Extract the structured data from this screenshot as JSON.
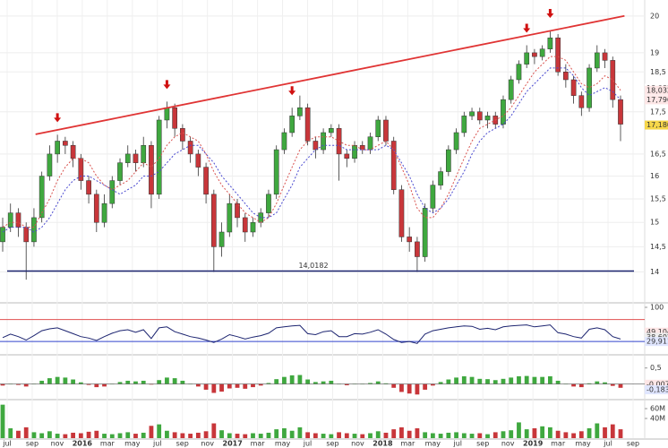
{
  "time_axis": {
    "labels": [
      "jul",
      "sep",
      "nov",
      "2016",
      "mar",
      "may",
      "jul",
      "sep",
      "nov",
      "2017",
      "mar",
      "may",
      "jul",
      "sep",
      "nov",
      "2018",
      "mar",
      "may",
      "jul",
      "sep",
      "nov",
      "2019",
      "mar",
      "may",
      "jul",
      "sep"
    ]
  },
  "chart_data": [
    {
      "type": "candlestick",
      "log_scale": true,
      "grid": true,
      "ylim": [
        13.46,
        20.45
      ],
      "yticks": [
        14,
        {
          "value": 14.5,
          "label": "14,5"
        },
        15,
        {
          "value": 15.5,
          "label": "15,5"
        },
        16,
        {
          "value": 16.5,
          "label": "16,5"
        },
        {
          "value": 17.5,
          "label": "17,5"
        },
        {
          "value": 18.5,
          "label": "18,5"
        },
        19,
        20
      ],
      "up_color": "#3fa83f",
      "down_color": "#c8363a",
      "candles": [
        [
          14.6,
          15.1,
          14.4,
          14.9
        ],
        [
          14.9,
          15.4,
          14.8,
          15.2
        ],
        [
          15.2,
          15.3,
          14.7,
          14.9
        ],
        [
          14.9,
          15.0,
          13.85,
          14.6
        ],
        [
          14.6,
          15.3,
          14.5,
          15.1
        ],
        [
          15.1,
          16.1,
          15.0,
          16.0
        ],
        [
          16.0,
          16.7,
          15.9,
          16.5
        ],
        [
          16.5,
          16.95,
          16.3,
          16.8
        ],
        [
          16.8,
          16.9,
          16.5,
          16.7
        ],
        [
          16.7,
          16.8,
          16.2,
          16.4
        ],
        [
          16.4,
          16.5,
          15.7,
          15.9
        ],
        [
          15.9,
          16.0,
          15.4,
          15.6
        ],
        [
          15.6,
          15.7,
          14.8,
          15.0
        ],
        [
          15.0,
          15.6,
          14.9,
          15.4
        ],
        [
          15.4,
          16.0,
          15.3,
          15.9
        ],
        [
          15.9,
          16.4,
          15.8,
          16.3
        ],
        [
          16.3,
          16.7,
          16.2,
          16.5
        ],
        [
          16.5,
          16.6,
          16.1,
          16.3
        ],
        [
          16.3,
          16.9,
          16.2,
          16.7
        ],
        [
          16.7,
          16.8,
          15.3,
          15.6
        ],
        [
          15.6,
          17.4,
          15.5,
          17.3
        ],
        [
          17.3,
          17.75,
          17.1,
          17.6
        ],
        [
          17.6,
          17.7,
          16.9,
          17.1
        ],
        [
          17.1,
          17.2,
          16.6,
          16.8
        ],
        [
          16.8,
          16.9,
          16.3,
          16.5
        ],
        [
          16.5,
          16.6,
          16.0,
          16.2
        ],
        [
          16.2,
          16.3,
          15.4,
          15.6
        ],
        [
          15.6,
          15.7,
          14.0,
          14.5
        ],
        [
          14.5,
          15.0,
          14.3,
          14.8
        ],
        [
          14.8,
          15.6,
          14.7,
          15.4
        ],
        [
          15.4,
          15.5,
          14.9,
          15.1
        ],
        [
          15.1,
          15.2,
          14.6,
          14.8
        ],
        [
          14.8,
          15.1,
          14.7,
          15.0
        ],
        [
          15.0,
          15.3,
          14.9,
          15.2
        ],
        [
          15.2,
          15.7,
          15.1,
          15.6
        ],
        [
          15.6,
          16.7,
          15.5,
          16.6
        ],
        [
          16.6,
          17.1,
          16.5,
          17.0
        ],
        [
          17.0,
          17.6,
          16.9,
          17.4
        ],
        [
          17.4,
          17.9,
          17.3,
          17.6
        ],
        [
          17.6,
          17.7,
          16.7,
          16.8
        ],
        [
          16.8,
          16.9,
          16.4,
          16.6
        ],
        [
          16.6,
          17.1,
          16.5,
          17.0
        ],
        [
          17.0,
          17.2,
          16.9,
          17.1
        ],
        [
          17.1,
          17.2,
          15.9,
          16.5
        ],
        [
          16.5,
          16.6,
          16.2,
          16.4
        ],
        [
          16.4,
          16.8,
          16.3,
          16.7
        ],
        [
          16.7,
          16.8,
          16.5,
          16.6
        ],
        [
          16.6,
          17.0,
          16.5,
          16.9
        ],
        [
          16.9,
          17.4,
          16.8,
          17.3
        ],
        [
          17.3,
          17.4,
          16.7,
          16.8
        ],
        [
          16.8,
          16.9,
          15.6,
          15.7
        ],
        [
          15.7,
          15.8,
          14.6,
          14.7
        ],
        [
          14.7,
          14.9,
          14.4,
          14.6
        ],
        [
          14.6,
          14.7,
          14.0,
          14.3
        ],
        [
          14.3,
          15.4,
          14.2,
          15.3
        ],
        [
          15.3,
          15.9,
          15.2,
          15.8
        ],
        [
          15.8,
          16.2,
          15.7,
          16.1
        ],
        [
          16.1,
          16.7,
          16.0,
          16.6
        ],
        [
          16.6,
          17.1,
          16.5,
          17.0
        ],
        [
          17.0,
          17.5,
          16.9,
          17.4
        ],
        [
          17.4,
          17.6,
          17.3,
          17.5
        ],
        [
          17.5,
          17.6,
          17.2,
          17.3
        ],
        [
          17.3,
          17.5,
          17.1,
          17.4
        ],
        [
          17.4,
          17.5,
          17.1,
          17.2
        ],
        [
          17.2,
          17.9,
          17.1,
          17.8
        ],
        [
          17.8,
          18.4,
          17.7,
          18.3
        ],
        [
          18.3,
          18.8,
          18.2,
          18.7
        ],
        [
          18.7,
          19.2,
          18.6,
          19.0
        ],
        [
          19.0,
          19.1,
          18.7,
          18.9
        ],
        [
          18.9,
          19.2,
          18.8,
          19.1
        ],
        [
          19.1,
          19.6,
          19.0,
          19.4
        ],
        [
          19.4,
          19.5,
          18.4,
          18.5
        ],
        [
          18.5,
          18.7,
          18.1,
          18.3
        ],
        [
          18.3,
          18.4,
          17.7,
          17.9
        ],
        [
          17.9,
          18.0,
          17.4,
          17.6
        ],
        [
          17.6,
          18.7,
          17.5,
          18.6
        ],
        [
          18.6,
          19.2,
          18.5,
          19.0
        ],
        [
          19.0,
          19.1,
          18.6,
          18.8
        ],
        [
          18.8,
          18.9,
          17.6,
          17.8
        ],
        [
          17.8,
          17.9,
          16.8,
          17.2
        ]
      ],
      "overlays": [
        {
          "color": "#d9534f",
          "values": [
            14.9,
            15.0,
            15.0,
            14.9,
            14.9,
            15.2,
            15.5,
            15.9,
            16.2,
            16.4,
            16.4,
            16.3,
            16.0,
            15.8,
            15.7,
            15.8,
            15.9,
            16.1,
            16.3,
            16.2,
            16.4,
            16.7,
            16.9,
            17.0,
            16.9,
            16.8,
            16.5,
            16.1,
            15.8,
            15.6,
            15.4,
            15.2,
            15.1,
            15.0,
            15.1,
            15.4,
            15.8,
            16.2,
            16.6,
            16.8,
            16.9,
            16.9,
            16.9,
            16.8,
            16.7,
            16.7,
            16.6,
            16.6,
            16.7,
            16.8,
            16.6,
            16.2,
            15.8,
            15.3,
            15.1,
            15.1,
            15.3,
            15.6,
            16.0,
            16.4,
            16.8,
            17.1,
            17.2,
            17.3,
            17.4,
            17.6,
            17.9,
            18.2,
            18.5,
            18.7,
            18.9,
            18.9,
            18.8,
            18.5,
            18.2,
            18.1,
            18.2,
            18.4,
            18.3,
            18.032
          ]
        },
        {
          "color": "#4a4ad0",
          "values": [
            14.8,
            14.9,
            14.9,
            14.9,
            14.8,
            14.9,
            15.1,
            15.4,
            15.7,
            15.9,
            16.0,
            16.0,
            15.9,
            15.8,
            15.7,
            15.6,
            15.7,
            15.8,
            16.0,
            16.0,
            16.1,
            16.3,
            16.5,
            16.6,
            16.7,
            16.7,
            16.5,
            16.3,
            16.0,
            15.8,
            15.6,
            15.4,
            15.2,
            15.1,
            15.1,
            15.2,
            15.5,
            15.8,
            16.2,
            16.4,
            16.6,
            16.7,
            16.7,
            16.7,
            16.6,
            16.6,
            16.6,
            16.6,
            16.6,
            16.7,
            16.6,
            16.3,
            16.0,
            15.6,
            15.3,
            15.2,
            15.3,
            15.5,
            15.8,
            16.1,
            16.5,
            16.8,
            17.0,
            17.1,
            17.2,
            17.4,
            17.7,
            18.0,
            18.2,
            18.4,
            18.6,
            18.6,
            18.6,
            18.4,
            18.1,
            17.9,
            18.0,
            18.1,
            18.0,
            17.796
          ]
        }
      ],
      "trendline": {
        "x": [
          4.2,
          79.5
        ],
        "values": [
          16.96,
          20.0
        ],
        "color": "#e03434"
      },
      "support": {
        "value": 14.0182,
        "label": "14,0182",
        "color": "#1c2470"
      },
      "markers": {
        "x": [
          7,
          21,
          37,
          67,
          70
        ],
        "color": "#d01010"
      },
      "tags": [
        {
          "value": 18.083,
          "label": "18,083",
          "color": "#d03030",
          "fill": "#ffffff"
        },
        {
          "value": 18.032,
          "label": "18,032",
          "color": "#d03030",
          "fill": "#fde6e6"
        },
        {
          "value": 17.796,
          "label": "17,796",
          "color": "#d03030",
          "fill": "#fde6e6"
        },
        {
          "value": 17.18,
          "label": "17,180",
          "color": "#000000",
          "fill": "#f6d64a"
        }
      ]
    },
    {
      "type": "line",
      "ylim": [
        10,
        100
      ],
      "yticks": [
        100
      ],
      "color": "#1c2470",
      "levels": [
        {
          "value": 75,
          "color": "#e05050"
        },
        {
          "value": 30,
          "color": "#3344cc"
        }
      ],
      "values": [
        38,
        45,
        40,
        33,
        42,
        52,
        56,
        58,
        52,
        46,
        40,
        37,
        32,
        40,
        47,
        52,
        54,
        49,
        54,
        36,
        58,
        60,
        50,
        45,
        40,
        37,
        33,
        28,
        35,
        44,
        40,
        35,
        39,
        42,
        47,
        58,
        60,
        62,
        63,
        46,
        44,
        50,
        52,
        40,
        40,
        46,
        45,
        49,
        54,
        45,
        34,
        28,
        30,
        26,
        45,
        52,
        55,
        58,
        60,
        62,
        61,
        55,
        57,
        54,
        60,
        62,
        63,
        64,
        60,
        62,
        64,
        48,
        45,
        40,
        37,
        55,
        58,
        54,
        40,
        35
      ],
      "tags": [
        {
          "value": 49.104,
          "label": "49,104",
          "color": "#d03030",
          "fill": "#fde6e6"
        },
        {
          "value": 38.602,
          "label": "38,602",
          "color": "#333333",
          "fill": "#eeeeee"
        },
        {
          "value": 29.911,
          "label": "29,911",
          "color": "#2233aa",
          "fill": "#e0e6ff"
        }
      ]
    },
    {
      "type": "bar",
      "ylim": [
        -0.35,
        0.8
      ],
      "yticks": [
        {
          "value": 0.5,
          "label": "0,5"
        }
      ],
      "positive_color": "#3fa83f",
      "negative_color": "#c8363a",
      "values": [
        -0.05,
        0.0,
        -0.03,
        -0.08,
        0.0,
        0.1,
        0.18,
        0.22,
        0.2,
        0.14,
        0.05,
        -0.03,
        -0.1,
        -0.08,
        0.0,
        0.06,
        0.1,
        0.08,
        0.1,
        -0.02,
        0.12,
        0.2,
        0.18,
        0.1,
        0.0,
        -0.08,
        -0.18,
        -0.28,
        -0.24,
        -0.14,
        -0.12,
        -0.15,
        -0.1,
        -0.05,
        0.03,
        0.15,
        0.22,
        0.27,
        0.28,
        0.14,
        0.06,
        0.08,
        0.1,
        0.0,
        -0.04,
        0.0,
        0.0,
        0.03,
        0.08,
        0.02,
        -0.12,
        -0.25,
        -0.3,
        -0.33,
        -0.18,
        -0.05,
        0.06,
        0.14,
        0.2,
        0.24,
        0.22,
        0.16,
        0.15,
        0.12,
        0.16,
        0.2,
        0.24,
        0.25,
        0.22,
        0.22,
        0.24,
        0.1,
        0.0,
        -0.08,
        -0.1,
        0.02,
        0.08,
        0.05,
        -0.06,
        -0.12
      ],
      "tags": [
        {
          "value": -0.007,
          "label": "-0,007",
          "color": "#d03030",
          "fill": "#fde6e6"
        },
        {
          "value": -0.183,
          "label": "-0,183",
          "color": "#2233aa",
          "fill": "#e0e6ff"
        }
      ]
    },
    {
      "type": "bar",
      "ylim": [
        0,
        71000000
      ],
      "yticks": [
        {
          "value": 40000000,
          "label": "40M"
        },
        {
          "value": 60000000,
          "label": "60M"
        }
      ],
      "up_color": "#3fa83f",
      "down_color": "#c8363a",
      "values": [
        68000000,
        20000000,
        15000000,
        22000000,
        12000000,
        10000000,
        14000000,
        9000000,
        8000000,
        11000000,
        10000000,
        13000000,
        15000000,
        9000000,
        8000000,
        10000000,
        12000000,
        9000000,
        11000000,
        25000000,
        28000000,
        15000000,
        12000000,
        10000000,
        9000000,
        11000000,
        14000000,
        30000000,
        16000000,
        10000000,
        9000000,
        8000000,
        10000000,
        9000000,
        11000000,
        18000000,
        20000000,
        15000000,
        22000000,
        12000000,
        10000000,
        9000000,
        8000000,
        12000000,
        10000000,
        9000000,
        8000000,
        10000000,
        14000000,
        11000000,
        18000000,
        22000000,
        15000000,
        20000000,
        12000000,
        10000000,
        9000000,
        11000000,
        12000000,
        10000000,
        9000000,
        10000000,
        8000000,
        12000000,
        14000000,
        16000000,
        32000000,
        18000000,
        20000000,
        24000000,
        22000000,
        15000000,
        12000000,
        10000000,
        14000000,
        20000000,
        30000000,
        22000000,
        28000000,
        18000000
      ]
    }
  ]
}
